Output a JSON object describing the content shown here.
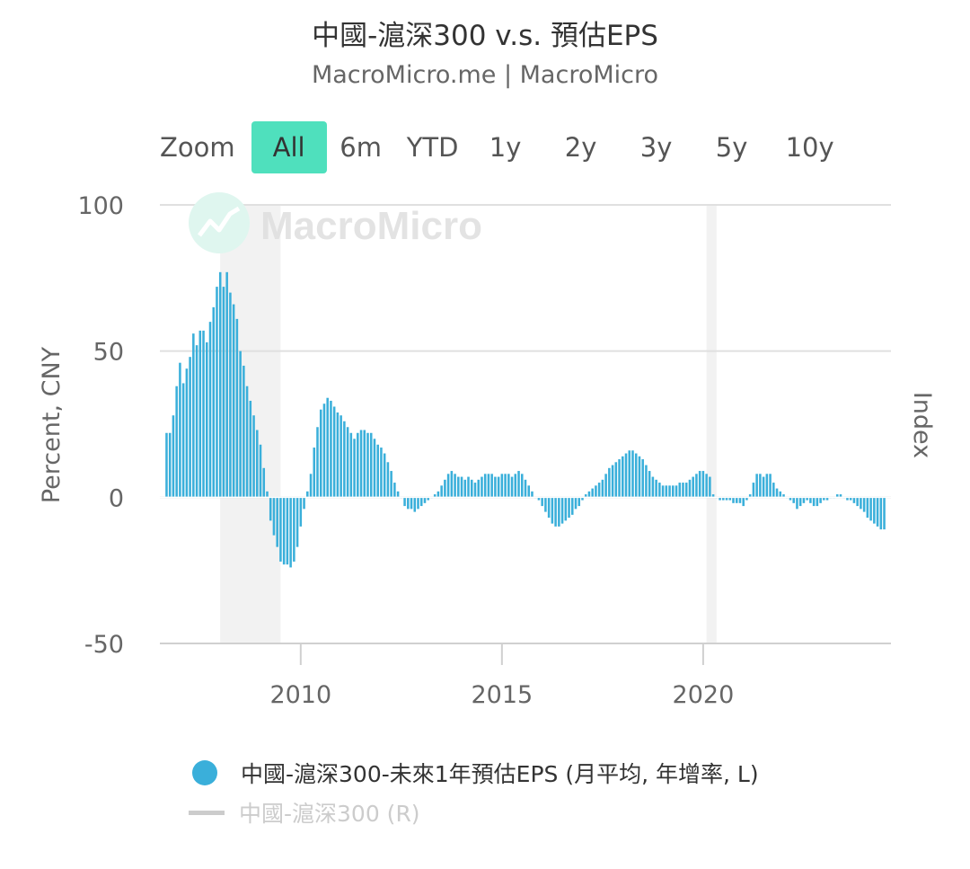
{
  "header": {
    "title": "中國-滬深300 v.s. 預估EPS",
    "subtitle": "MacroMicro.me | MacroMicro"
  },
  "zoom": {
    "label": "Zoom",
    "options": [
      "All",
      "6m",
      "YTD",
      "1y",
      "2y",
      "3y",
      "5y",
      "10y"
    ],
    "active": "All"
  },
  "watermark": "MacroMicro",
  "colors": {
    "bar": "#3aafda",
    "accent": "#4fe0bd",
    "grid": "#e0e0e0",
    "recession": "#f2f2f2"
  },
  "legend": [
    {
      "label": "中國-滬深300-未來1年預估EPS (月平均, 年增率, L)",
      "marker": "dot",
      "color": "#3aafda"
    },
    {
      "label": "中國-滬深300 (R)",
      "marker": "line",
      "color": "#cccccc",
      "disabled": true
    }
  ],
  "chart_data": {
    "type": "bar",
    "ylabel_left": "Percent, CNY",
    "ylabel_right": "Index",
    "ylim": [
      -50,
      100
    ],
    "yticks": [
      "100",
      "50",
      "0",
      "-50"
    ],
    "xticks": [
      "2010",
      "2015",
      "2020"
    ],
    "x_range": [
      "2006-07",
      "2024-09"
    ],
    "shaded_periods": [
      [
        "2008-01",
        "2009-06"
      ],
      [
        "2020-02",
        "2020-04"
      ]
    ],
    "grid": true,
    "series": [
      {
        "name": "中國-滬深300-未來1年預估EPS (月平均, 年增率, L)",
        "start": "2006-09",
        "frequency": "monthly",
        "values": [
          22,
          22,
          28,
          38,
          46,
          39,
          44,
          48,
          56,
          52,
          57,
          57,
          53,
          60,
          65,
          72,
          77,
          72,
          77,
          70,
          66,
          61,
          50,
          45,
          38,
          33,
          28,
          23,
          18,
          10,
          2,
          -8,
          -13,
          -17,
          -22,
          -23,
          -23,
          -24,
          -22,
          -17,
          -10,
          -4,
          2,
          8,
          17,
          24,
          30,
          32,
          34,
          33,
          31,
          29,
          28,
          26,
          24,
          22,
          20,
          22,
          23,
          23,
          22,
          22,
          20,
          18,
          17,
          15,
          12,
          9,
          5,
          2,
          0,
          -3,
          -4,
          -4,
          -5,
          -4,
          -3,
          -2,
          -1,
          0,
          1,
          2,
          4,
          6,
          8,
          9,
          8,
          7,
          7,
          6,
          7,
          6,
          5,
          6,
          7,
          8,
          8,
          8,
          7,
          7,
          8,
          8,
          8,
          7,
          8,
          9,
          8,
          6,
          4,
          2,
          0,
          -1,
          -3,
          -5,
          -7,
          -9,
          -10,
          -10,
          -9,
          -8,
          -7,
          -6,
          -4,
          -3,
          -1,
          1,
          2,
          3,
          4,
          5,
          6,
          8,
          10,
          11,
          12,
          13,
          14,
          15,
          16,
          16,
          15,
          14,
          13,
          11,
          9,
          7,
          6,
          5,
          4,
          4,
          4,
          4,
          4,
          5,
          5,
          5,
          6,
          7,
          8,
          9,
          9,
          8,
          7,
          1,
          0,
          -1,
          -1,
          -1,
          -1,
          -2,
          -2,
          -2,
          -3,
          -1,
          1,
          5,
          8,
          8,
          7,
          8,
          8,
          5,
          3,
          2,
          1,
          0,
          -1,
          -2,
          -4,
          -3,
          -2,
          -1,
          -2,
          -3,
          -3,
          -2,
          -1,
          -1,
          0,
          0,
          1,
          1,
          0,
          -1,
          -1,
          -2,
          -3,
          -4,
          -5,
          -7,
          -8,
          -9,
          -10,
          -11,
          -11
        ]
      }
    ]
  }
}
